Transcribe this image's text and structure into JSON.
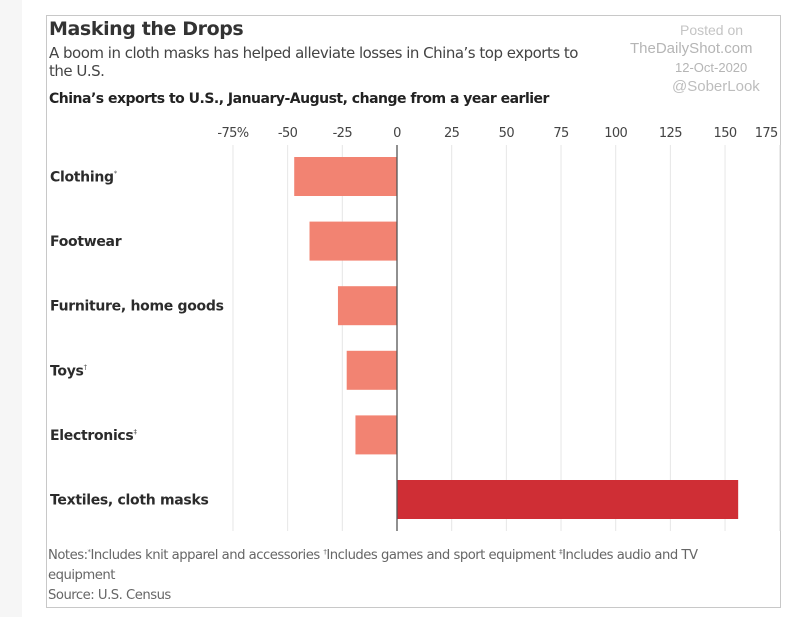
{
  "header": {
    "title": "Masking the Drops",
    "subtitle": "A boom in cloth masks has helped alleviate losses in China’s top exports to the U.S."
  },
  "watermark": {
    "posted": "Posted on",
    "site": "TheDailyShot.com",
    "date": "12-Oct-2020",
    "handle": "@SoberLook"
  },
  "colors": {
    "negative_bar": "#f28372",
    "positive_bar": "#cf2e35",
    "gridline": "#e6e6e6",
    "zero_line": "#555555"
  },
  "chart_data": {
    "type": "bar",
    "orientation": "horizontal",
    "title": "China’s exports to U.S., January-August, change from a year earlier",
    "xlabel": "",
    "ylabel": "",
    "unit": "%",
    "xlim": [
      -75,
      175
    ],
    "ticks": [
      -75,
      -50,
      -25,
      0,
      25,
      50,
      75,
      100,
      125,
      150,
      175
    ],
    "tick_labels": [
      "-75%",
      "-50",
      "-25",
      "0",
      "25",
      "50",
      "75",
      "100",
      "125",
      "150",
      "175"
    ],
    "grid": true,
    "categories": [
      "Clothing",
      "Footwear",
      "Furniture, home goods",
      "Toys",
      "Electronics",
      "Textiles, cloth masks"
    ],
    "footnote_marks": [
      "*",
      "",
      "",
      "†",
      "‡",
      ""
    ],
    "values": [
      -47,
      -40,
      -27,
      -23,
      -19,
      156
    ]
  },
  "footer": {
    "notes_prefix": "Notes:",
    "note1_mark": "*",
    "note1": "Includes knit apparel and accessories",
    "note2_mark": "†",
    "note2": "Includes games and sport equipment",
    "note3_mark": "‡",
    "note3": "Includes audio and TV equipment",
    "source": "Source: U.S. Census"
  }
}
